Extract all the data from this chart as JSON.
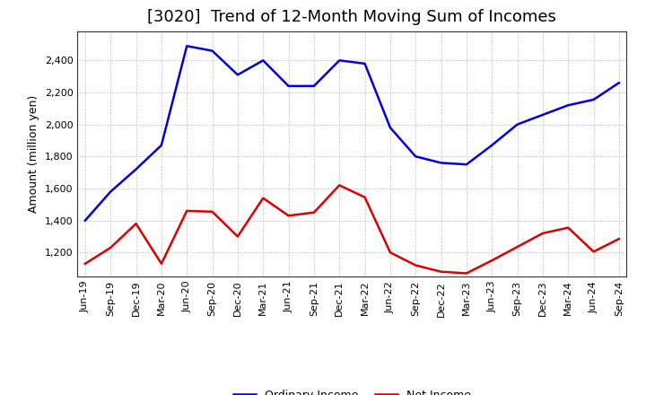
{
  "title": "[3020]  Trend of 12-Month Moving Sum of Incomes",
  "ylabel": "Amount (million yen)",
  "background_color": "#ffffff",
  "plot_bg_color": "#ffffff",
  "grid_color": "#aaaaaa",
  "x_labels": [
    "Jun-19",
    "Sep-19",
    "Dec-19",
    "Mar-20",
    "Jun-20",
    "Sep-20",
    "Dec-20",
    "Mar-21",
    "Jun-21",
    "Sep-21",
    "Dec-21",
    "Mar-22",
    "Jun-22",
    "Sep-22",
    "Dec-22",
    "Mar-23",
    "Jun-23",
    "Sep-23",
    "Dec-23",
    "Mar-24",
    "Jun-24",
    "Sep-24"
  ],
  "ordinary_income": [
    1400,
    1580,
    1720,
    1870,
    2490,
    2460,
    2310,
    2400,
    2240,
    2240,
    2400,
    2380,
    1980,
    1800,
    1760,
    1750,
    1870,
    2000,
    2060,
    2120,
    2155,
    2260
  ],
  "net_income": [
    1130,
    1230,
    1380,
    1130,
    1460,
    1455,
    1300,
    1540,
    1430,
    1450,
    1620,
    1545,
    1200,
    1120,
    1080,
    1070,
    1150,
    1235,
    1320,
    1355,
    1205,
    1285
  ],
  "ordinary_color": "#0000dd",
  "net_color": "#dd0000",
  "ylim_min": 1050,
  "ylim_max": 2580,
  "yticks": [
    1200,
    1400,
    1600,
    1800,
    2000,
    2200,
    2400
  ],
  "line_width": 1.8,
  "title_fontsize": 13,
  "axis_fontsize": 9,
  "tick_fontsize": 8,
  "legend_fontsize": 9
}
